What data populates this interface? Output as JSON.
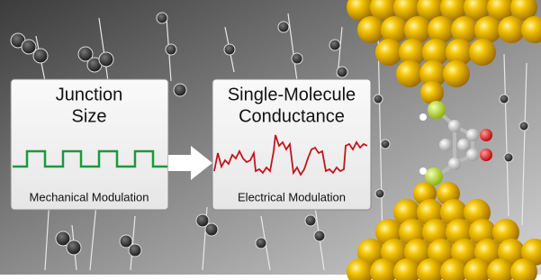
{
  "panels": [
    {
      "title_lines": [
        "Junction",
        "Size"
      ],
      "caption": "Mechanical Modulation"
    },
    {
      "title_lines": [
        "Single-Molecule",
        "Conductance"
      ],
      "caption": "Electrical Modulation"
    }
  ]
}
